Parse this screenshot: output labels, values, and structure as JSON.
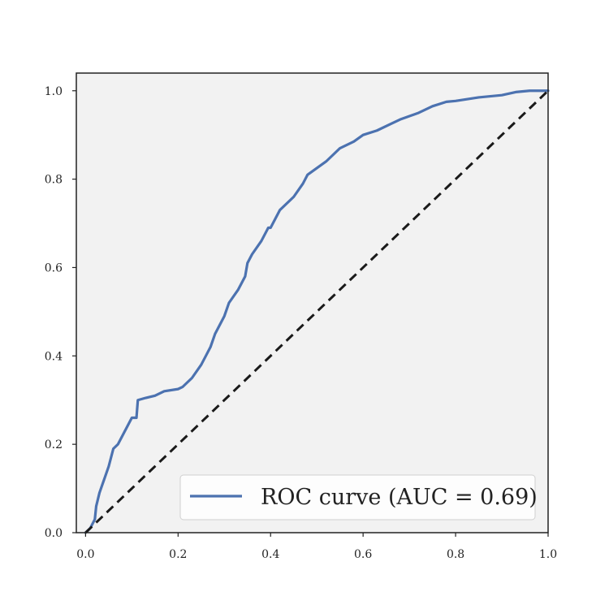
{
  "chart_data": {
    "type": "line",
    "title": "",
    "xlabel": "",
    "ylabel": "",
    "xlim": [
      -0.02,
      1.0
    ],
    "ylim": [
      0.0,
      1.04
    ],
    "x_ticks": [
      "0.0",
      "0.2",
      "0.4",
      "0.6",
      "0.8",
      "1.0"
    ],
    "y_ticks": [
      "0.0",
      "0.2",
      "0.4",
      "0.6",
      "0.8",
      "1.0"
    ],
    "grid": false,
    "legend_position": "lower-right",
    "background_color": "#f2f2f2",
    "series": [
      {
        "name": "ROC curve (AUC = 0.69)",
        "color": "#4c72b0",
        "x": [
          0.0,
          0.01,
          0.02,
          0.023,
          0.03,
          0.04,
          0.05,
          0.055,
          0.06,
          0.07,
          0.08,
          0.09,
          0.1,
          0.11,
          0.113,
          0.13,
          0.15,
          0.17,
          0.2,
          0.21,
          0.23,
          0.25,
          0.26,
          0.27,
          0.28,
          0.3,
          0.31,
          0.33,
          0.345,
          0.35,
          0.36,
          0.38,
          0.395,
          0.4,
          0.42,
          0.45,
          0.47,
          0.48,
          0.52,
          0.55,
          0.56,
          0.58,
          0.6,
          0.63,
          0.66,
          0.68,
          0.72,
          0.75,
          0.78,
          0.8,
          0.85,
          0.9,
          0.93,
          0.96,
          1.0
        ],
        "y": [
          0.0,
          0.01,
          0.03,
          0.06,
          0.09,
          0.12,
          0.15,
          0.17,
          0.19,
          0.2,
          0.22,
          0.24,
          0.26,
          0.26,
          0.3,
          0.305,
          0.31,
          0.32,
          0.325,
          0.33,
          0.35,
          0.38,
          0.4,
          0.42,
          0.45,
          0.49,
          0.52,
          0.55,
          0.58,
          0.61,
          0.63,
          0.66,
          0.69,
          0.69,
          0.73,
          0.76,
          0.79,
          0.81,
          0.84,
          0.87,
          0.875,
          0.885,
          0.9,
          0.91,
          0.925,
          0.935,
          0.95,
          0.965,
          0.975,
          0.977,
          0.985,
          0.99,
          0.997,
          1.0,
          1.0
        ]
      },
      {
        "name": "",
        "color": "#1a1a1a",
        "style": "dashed",
        "x": [
          0.0,
          1.0
        ],
        "y": [
          0.0,
          1.0
        ]
      }
    ],
    "legend": {
      "entries": [
        "ROC curve (AUC = 0.69)"
      ]
    }
  }
}
